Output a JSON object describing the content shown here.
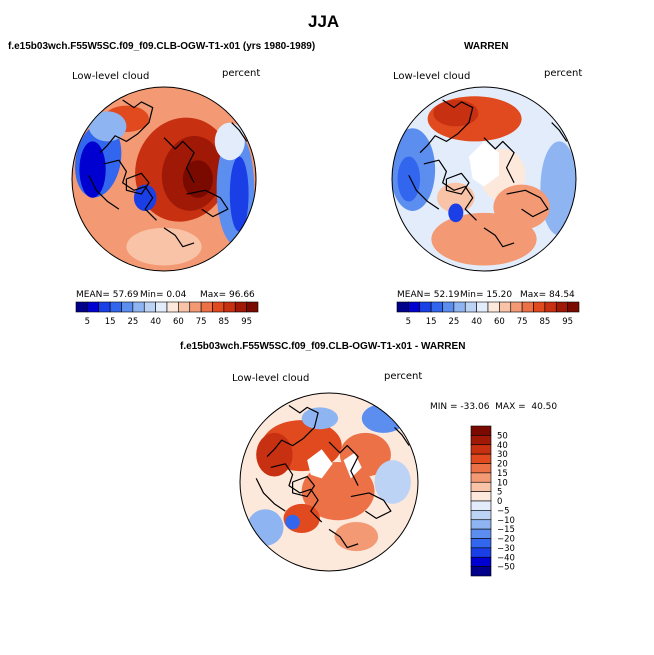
{
  "figure_title": "JJA",
  "chart_data": [
    {
      "type": "heatmap",
      "subtype": "polar-stereographic-map",
      "title": "f.e15b03wch.F55W5SC.f09_f09.CLB-OGW-T1-x01 (yrs 1980-1989)",
      "left_label": "Low-level cloud",
      "right_label": "percent",
      "stats": {
        "mean_text": "MEAN= 57.69",
        "min_text": "Min= 0.04",
        "max_text": "Max= 96.66",
        "mean": 57.69,
        "min": 0.04,
        "max": 96.66
      },
      "colorbar": {
        "orientation": "horizontal",
        "levels": [
          5,
          10,
          15,
          20,
          25,
          30,
          40,
          50,
          60,
          70,
          75,
          80,
          85,
          90,
          95
        ],
        "tick_labels": [
          "5",
          "15",
          "25",
          "40",
          "60",
          "75",
          "85",
          "95"
        ],
        "colors": [
          "#00008b",
          "#0000d0",
          "#1a3fe6",
          "#3366ee",
          "#5c8ef0",
          "#8fb4f2",
          "#bcd3f6",
          "#e2ecfb",
          "#fde8dc",
          "#f9c3a8",
          "#f39a75",
          "#ec7147",
          "#e04a1e",
          "#c73010",
          "#a01806",
          "#7a0a00"
        ]
      }
    },
    {
      "type": "heatmap",
      "subtype": "polar-stereographic-map",
      "title": "WARREN",
      "left_label": "Low-level cloud",
      "right_label": "percent",
      "stats": {
        "mean_text": "MEAN= 52.19",
        "min_text": "Min= 15.20",
        "max_text": "Max= 84.54",
        "mean": 52.19,
        "min": 15.2,
        "max": 84.54
      },
      "colorbar": {
        "orientation": "horizontal",
        "levels": [
          5,
          10,
          15,
          20,
          25,
          30,
          40,
          50,
          60,
          70,
          75,
          80,
          85,
          90,
          95
        ],
        "tick_labels": [
          "5",
          "15",
          "25",
          "40",
          "60",
          "75",
          "85",
          "95"
        ],
        "colors": [
          "#00008b",
          "#0000d0",
          "#1a3fe6",
          "#3366ee",
          "#5c8ef0",
          "#8fb4f2",
          "#bcd3f6",
          "#e2ecfb",
          "#fde8dc",
          "#f9c3a8",
          "#f39a75",
          "#ec7147",
          "#e04a1e",
          "#c73010",
          "#a01806",
          "#7a0a00"
        ]
      }
    },
    {
      "type": "heatmap",
      "subtype": "polar-stereographic-map-difference",
      "title": "f.e15b03wch.F55W5SC.f09_f09.CLB-OGW-T1-x01 - WARREN",
      "left_label": "Low-level cloud",
      "right_label": "percent",
      "stats": {
        "text": "MIN = -33.06  MAX =  40.50",
        "min": -33.06,
        "max": 40.5
      },
      "colorbar": {
        "orientation": "vertical",
        "levels": [
          -50,
          -40,
          -30,
          -20,
          -15,
          -10,
          -5,
          0,
          5,
          10,
          15,
          20,
          30,
          40,
          50
        ],
        "tick_labels": [
          "50",
          "40",
          "30",
          "20",
          "15",
          "10",
          "5",
          "0",
          "−5",
          "−10",
          "−15",
          "−20",
          "−30",
          "−40",
          "−50"
        ],
        "colors": [
          "#7a0a00",
          "#a01806",
          "#c73010",
          "#e04a1e",
          "#ec7147",
          "#f39a75",
          "#f9c3a8",
          "#fde8dc",
          "#e2ecfb",
          "#bcd3f6",
          "#8fb4f2",
          "#5c8ef0",
          "#3366ee",
          "#1a3fe6",
          "#0000d0",
          "#00008b"
        ]
      }
    }
  ]
}
